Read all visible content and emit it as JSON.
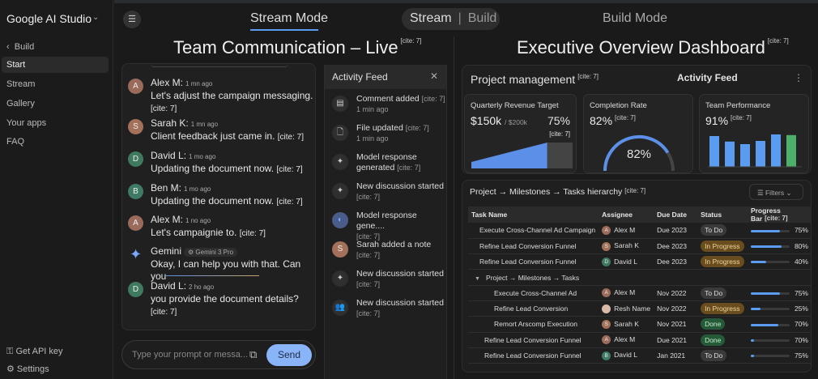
{
  "sidebar": {
    "brand": "Google AI Studio",
    "back": "Build",
    "items": [
      {
        "label": "Start"
      },
      {
        "label": "Stream"
      },
      {
        "label": "Gallery"
      },
      {
        "label": "Your apps"
      },
      {
        "label": "FAQ"
      }
    ],
    "api_key": "Get API key",
    "settings": "Settings"
  },
  "header": {
    "stream_mode": "Stream Mode",
    "toggle_stream": "Stream",
    "toggle_sep": "|",
    "toggle_build": "Build",
    "build_mode": "Build Mode"
  },
  "cite": "[cite: 7]",
  "chat": {
    "title": "Team Communication – Live",
    "messages": [
      {
        "initial": "A",
        "name": "Alex M:",
        "time": "1 mn ago",
        "text": "Let's adjust the campaign messaging.",
        "cite": "[cite: 7]"
      },
      {
        "initial": "S",
        "name": "Sarah K:",
        "time": "1 mn ago",
        "text": "Client feedback just came in.",
        "cite": "[cite: 7]"
      },
      {
        "initial": "D",
        "name": "David L:",
        "time": "1 mo ago",
        "text": "Updating the document now.",
        "cite": "[cite: 7]"
      },
      {
        "initial": "B",
        "name": "Ben M:",
        "time": "1 mo ago",
        "text": "Updating the document now.",
        "cite": "[cite: 7]"
      },
      {
        "initial": "A",
        "name": "Alex M:",
        "time": "1 no ago",
        "text": "Let's campaignie to.",
        "cite": "[cite: 7]"
      },
      {
        "initial": "",
        "name": "Gemini",
        "time": "Gemini 3 Pro",
        "text": "Okay, I can help you with that. Can you",
        "cite": ""
      },
      {
        "initial": "D",
        "name": "David L:",
        "time": "2 ho ago",
        "text": "you provide the document details?",
        "cite": "[cite: 7]"
      }
    ],
    "input_placeholder": "Type your prompt or messa...",
    "send": "Send"
  },
  "feed": {
    "title": "Activity Feed",
    "items": [
      {
        "icon": "comment-icon",
        "title": "Comment added",
        "cite": "[cite: 7]",
        "sub": "1 min ago"
      },
      {
        "icon": "file-icon",
        "title": "File updated",
        "cite": "[cite: 7]",
        "sub": "1 min ago"
      },
      {
        "icon": "sparkle-icon",
        "title": "Model response generated",
        "cite": "[cite: 7]",
        "sub": ""
      },
      {
        "icon": "sparkle-icon",
        "title": "New discussion started",
        "cite": "",
        "sub": "[cite: 7]"
      },
      {
        "icon": "avatar-icon",
        "title": "Model response gene....",
        "cite": "",
        "sub": "[cite: 7]"
      },
      {
        "icon": "avatar-s-icon",
        "title": "Sarah added a note",
        "cite": "",
        "sub": "[cite: 7]"
      },
      {
        "icon": "sparkle-icon",
        "title": "New discussion started",
        "cite": "",
        "sub": "[cite: 7]"
      },
      {
        "icon": "group-icon",
        "title": "New discussion started",
        "cite": "",
        "sub": "[cite: 7]"
      }
    ]
  },
  "dashboard": {
    "title": "Executive Overview Dashboard",
    "pm_title": "Project management",
    "activity": "Activity Feed",
    "revenue": {
      "title": "Quarterly Revenue Target",
      "value": "$150k",
      "target": "/ $200k",
      "pct": "75%",
      "progress": 0.75
    },
    "completion": {
      "title": "Completion Rate",
      "value": "82%",
      "center": "82%",
      "progress": 0.82
    },
    "team": {
      "title": "Team Performance",
      "value": "91%",
      "bars": [
        0.95,
        0.78,
        0.7,
        0.8,
        1.0,
        0.98
      ],
      "colors": [
        "#5b9bf0",
        "#5b9bf0",
        "#5b9bf0",
        "#5b9bf0",
        "#5b9bf0",
        "#4caf6a"
      ]
    },
    "table": {
      "title": "Project → Milestones → Tasks hierarchy",
      "filters": "Filters",
      "columns": [
        "Task Name",
        "Assignee",
        "Due Date",
        "Status",
        "Progress Bar"
      ],
      "group": "Project → Milestones → Tasks",
      "rows": [
        {
          "task": "Execute Cross-Channel Ad Campaign",
          "initial": "A",
          "assignee": "Alex M",
          "due": "Due 2023",
          "status": "To Do",
          "progress": "75%",
          "level": 1
        },
        {
          "task": "Refine Lead Conversion Funnel",
          "initial": "S",
          "assignee": "Sarah K",
          "due": "Dee 2023",
          "status": "In Progress",
          "progress": "80%",
          "level": 1
        },
        {
          "task": "Refine Lead Conversion Funnel",
          "initial": "D",
          "assignee": "David L",
          "due": "Dee 2023",
          "status": "In Progress",
          "progress": "40%",
          "level": 1
        },
        {
          "task": "Execute Cross-Channel Ad",
          "initial": "A",
          "assignee": "Alex M",
          "due": "Nov 2022",
          "status": "To Do",
          "progress": "75%",
          "level": 2
        },
        {
          "task": "Refine Lead Conversion",
          "initial": "",
          "assignee": "Resh Name",
          "due": "Nov 2022",
          "status": "In Progress",
          "progress": "25%",
          "level": 2
        },
        {
          "task": "Remort Arscomp Execution",
          "initial": "S",
          "assignee": "Sarah K",
          "due": "Nov 2021",
          "status": "Done",
          "progress": "70%",
          "level": 2
        },
        {
          "task": "Refine Lead Conversion Funnel",
          "initial": "A",
          "assignee": "Alex M",
          "due": "Due 2021",
          "status": "Done",
          "progress": "70%",
          "level": 1
        },
        {
          "task": "Refine Lead Conversion Funnel",
          "initial": "B",
          "assignee": "David L",
          "due": "Jan 2021",
          "status": "To Do",
          "progress": "75%",
          "level": 1
        }
      ]
    }
  }
}
